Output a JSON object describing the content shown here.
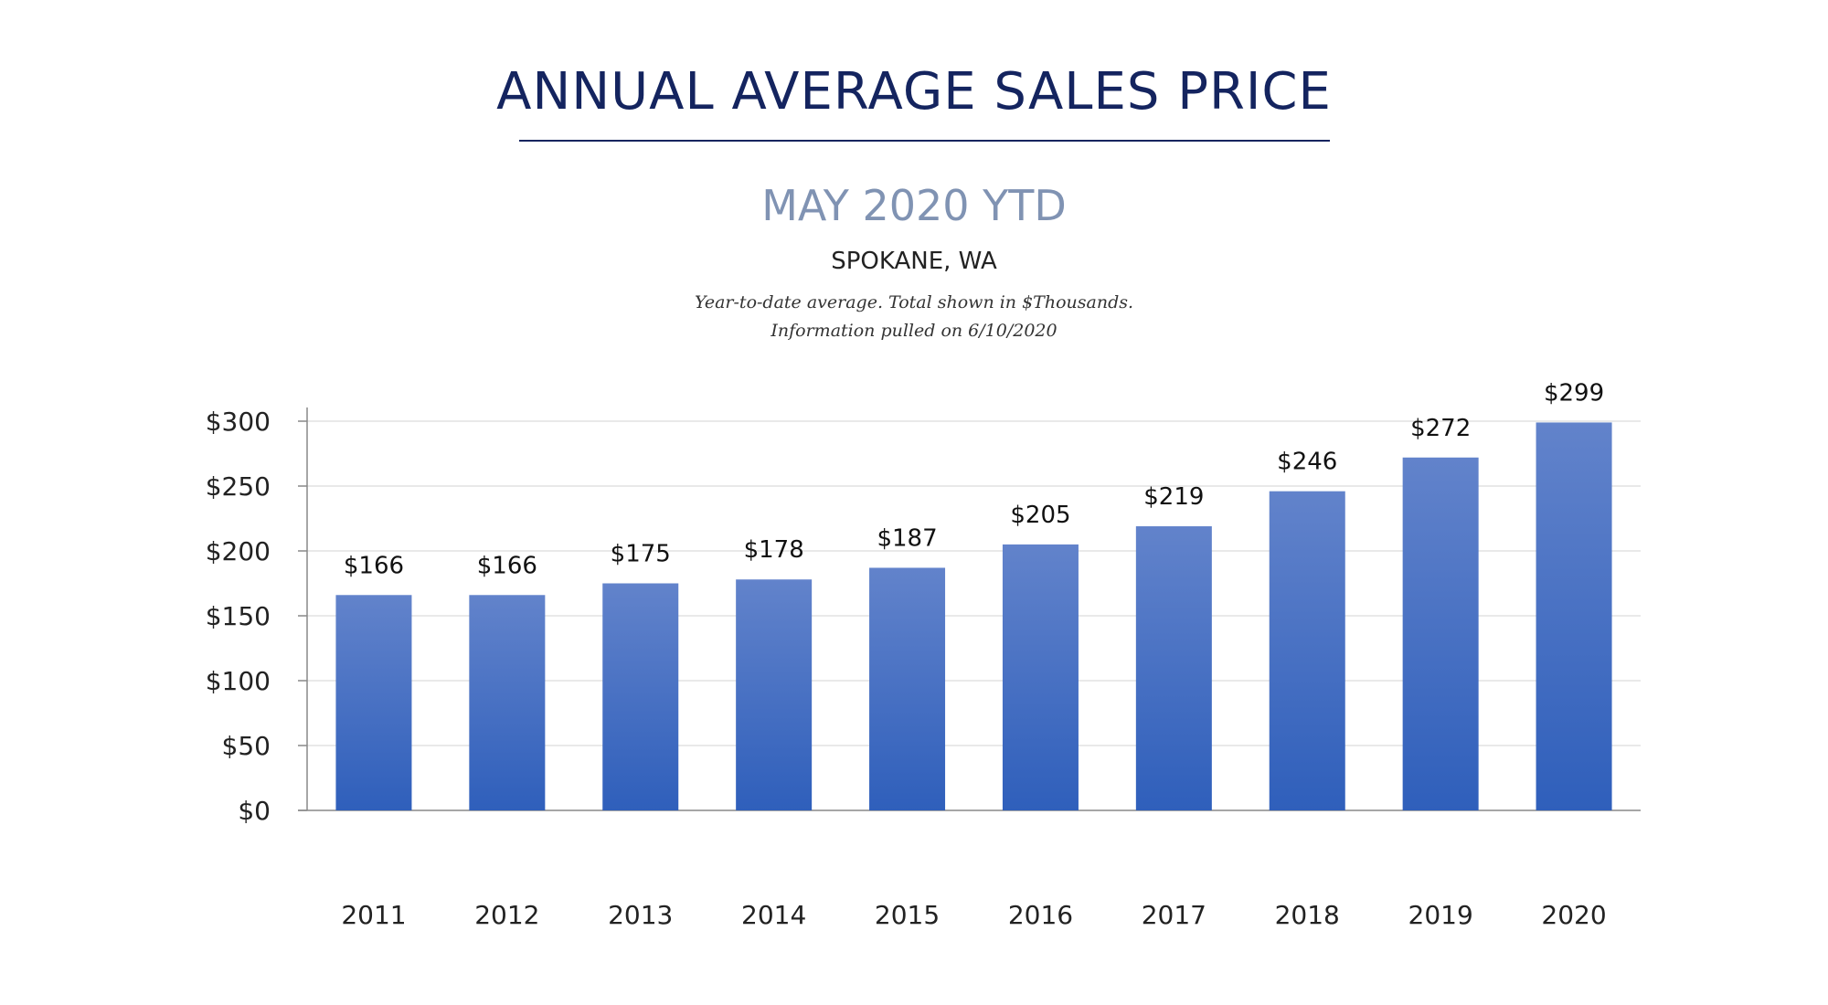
{
  "header": {
    "title": "ANNUAL AVERAGE SALES PRICE",
    "subtitle": "MAY 2020 YTD",
    "location": "SPOKANE, WA",
    "note_line1": "Year-to-date average.  Total shown in $Thousands.",
    "note_line2": "Information pulled on 6/10/2020"
  },
  "colors": {
    "title": "#14245f",
    "subtitle": "#8093b3",
    "bar_top": "#6283cb",
    "bar_bottom": "#2f5fbb"
  },
  "chart_data": {
    "type": "bar",
    "categories": [
      "2011",
      "2012",
      "2013",
      "2014",
      "2015",
      "2016",
      "2017",
      "2018",
      "2019",
      "2020"
    ],
    "values": [
      166,
      166,
      175,
      178,
      187,
      205,
      219,
      246,
      272,
      299
    ],
    "data_labels": [
      "$166",
      "$166",
      "$175",
      "$178",
      "$187",
      "$205",
      "$219",
      "$246",
      "$272",
      "$299"
    ],
    "yticks": [
      0,
      50,
      100,
      150,
      200,
      250,
      300
    ],
    "ytick_labels": [
      "$0",
      "$50",
      "$100",
      "$150",
      "$200",
      "$250",
      "$300"
    ],
    "ylim": [
      0,
      300
    ],
    "grid": true,
    "legend": "none"
  }
}
